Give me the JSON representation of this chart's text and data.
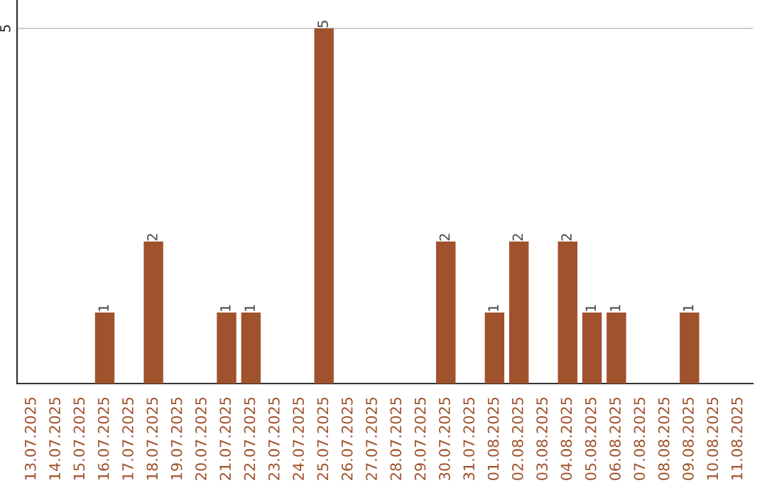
{
  "chart_data": {
    "type": "bar",
    "categories": [
      "13.07.2025",
      "14.07.2025",
      "15.07.2025",
      "16.07.2025",
      "17.07.2025",
      "18.07.2025",
      "19.07.2025",
      "20.07.2025",
      "21.07.2025",
      "22.07.2025",
      "23.07.2025",
      "24.07.2025",
      "25.07.2025",
      "26.07.2025",
      "27.07.2025",
      "28.07.2025",
      "29.07.2025",
      "30.07.2025",
      "31.07.2025",
      "01.08.2025",
      "02.08.2025",
      "03.08.2025",
      "04.08.2025",
      "05.08.2025",
      "06.08.2025",
      "07.08.2025",
      "08.08.2025",
      "09.08.2025",
      "10.08.2025",
      "11.08.2025"
    ],
    "values": [
      0,
      0,
      0,
      1,
      0,
      2,
      0,
      0,
      1,
      1,
      0,
      0,
      5,
      0,
      0,
      0,
      0,
      2,
      0,
      1,
      2,
      0,
      2,
      1,
      1,
      0,
      0,
      1,
      0,
      0
    ],
    "value_labels": [
      null,
      null,
      null,
      "1",
      null,
      "2",
      null,
      null,
      "1",
      "1",
      null,
      null,
      "5",
      null,
      null,
      null,
      null,
      "2",
      null,
      "1",
      "2",
      null,
      "2",
      "1",
      "1",
      null,
      null,
      "1",
      null,
      null
    ],
    "color": "#a0522d",
    "ylim": [
      0,
      5.4
    ],
    "yticks": [
      5
    ],
    "grid": "y"
  }
}
